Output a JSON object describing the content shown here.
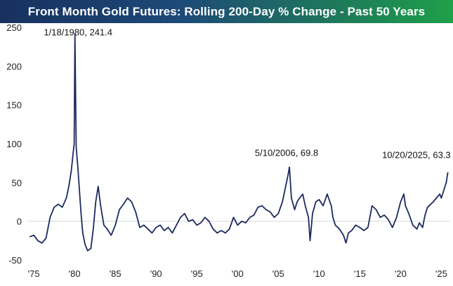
{
  "chart_data": {
    "type": "line",
    "title": "Front Month Gold Futures: Rolling 200-Day % Change - Past 50 Years",
    "xlabel": "",
    "ylabel": "",
    "xlim": [
      1974.3,
      2026.0
    ],
    "ylim": [
      -50,
      250
    ],
    "grid": false,
    "line_color": "#1b2a5e",
    "x_ticks": [
      {
        "value": 1975,
        "label": "'75"
      },
      {
        "value": 1980,
        "label": "'80"
      },
      {
        "value": 1985,
        "label": "'85"
      },
      {
        "value": 1990,
        "label": "'90"
      },
      {
        "value": 1995,
        "label": "'95"
      },
      {
        "value": 2000,
        "label": "'00"
      },
      {
        "value": 2005,
        "label": "'05"
      },
      {
        "value": 2010,
        "label": "'10"
      },
      {
        "value": 2015,
        "label": "'15"
      },
      {
        "value": 2020,
        "label": "'20"
      },
      {
        "value": 2025,
        "label": "'25"
      }
    ],
    "y_ticks": [
      {
        "value": -50,
        "label": "-50"
      },
      {
        "value": 0,
        "label": "0"
      },
      {
        "value": 50,
        "label": "50"
      },
      {
        "value": 100,
        "label": "100"
      },
      {
        "value": 150,
        "label": "150"
      },
      {
        "value": 200,
        "label": "200"
      },
      {
        "value": 250,
        "label": "250"
      }
    ],
    "annotations": [
      {
        "text": "1/18/1980, 241.4",
        "x": 1980.05,
        "y": 241.4
      },
      {
        "text": "5/10/2006, 69.8",
        "x": 2006.36,
        "y": 69.8
      },
      {
        "text": "10/20/2025, 63.3",
        "x": 2025.8,
        "y": 63.3
      }
    ],
    "series": [
      {
        "name": "Rolling 200-Day % Change",
        "x": [
          1974.5,
          1975.0,
          1975.5,
          1976.0,
          1976.5,
          1977.0,
          1977.5,
          1978.0,
          1978.5,
          1979.0,
          1979.3,
          1979.6,
          1979.8,
          1979.95,
          1980.05,
          1980.2,
          1980.4,
          1980.6,
          1980.8,
          1981.0,
          1981.3,
          1981.6,
          1982.0,
          1982.3,
          1982.6,
          1982.9,
          1983.2,
          1983.6,
          1984.0,
          1984.5,
          1985.0,
          1985.5,
          1986.0,
          1986.5,
          1987.0,
          1987.5,
          1988.0,
          1988.5,
          1989.0,
          1989.5,
          1990.0,
          1990.5,
          1991.0,
          1991.5,
          1992.0,
          1992.5,
          1993.0,
          1993.5,
          1994.0,
          1994.5,
          1995.0,
          1995.5,
          1996.0,
          1996.5,
          1997.0,
          1997.5,
          1998.0,
          1998.5,
          1999.0,
          1999.5,
          2000.0,
          2000.5,
          2001.0,
          2001.5,
          2002.0,
          2002.5,
          2003.0,
          2003.5,
          2004.0,
          2004.5,
          2005.0,
          2005.5,
          2005.9,
          2006.2,
          2006.36,
          2006.6,
          2007.0,
          2007.3,
          2007.6,
          2008.0,
          2008.3,
          2008.7,
          2008.9,
          2009.2,
          2009.6,
          2010.0,
          2010.5,
          2011.0,
          2011.5,
          2011.7,
          2012.0,
          2012.5,
          2013.0,
          2013.3,
          2013.6,
          2014.0,
          2014.5,
          2015.0,
          2015.5,
          2016.0,
          2016.5,
          2017.0,
          2017.5,
          2018.0,
          2018.5,
          2019.0,
          2019.5,
          2020.0,
          2020.4,
          2020.6,
          2021.0,
          2021.5,
          2022.0,
          2022.3,
          2022.7,
          2023.0,
          2023.3,
          2023.7,
          2024.0,
          2024.4,
          2024.8,
          2025.0,
          2025.3,
          2025.6,
          2025.8
        ],
        "y": [
          -20,
          -18,
          -25,
          -28,
          -22,
          5,
          18,
          22,
          18,
          30,
          45,
          65,
          85,
          100,
          241.4,
          95,
          70,
          40,
          10,
          -15,
          -30,
          -38,
          -35,
          -10,
          25,
          45,
          20,
          -5,
          -10,
          -18,
          -5,
          15,
          22,
          30,
          25,
          12,
          -8,
          -5,
          -10,
          -15,
          -8,
          -5,
          -12,
          -8,
          -15,
          -5,
          5,
          10,
          0,
          2,
          -5,
          -2,
          5,
          0,
          -10,
          -15,
          -12,
          -15,
          -10,
          5,
          -5,
          0,
          -2,
          5,
          8,
          18,
          20,
          15,
          12,
          5,
          10,
          25,
          45,
          60,
          69.8,
          30,
          15,
          25,
          30,
          35,
          20,
          5,
          -25,
          10,
          25,
          28,
          20,
          35,
          20,
          5,
          -5,
          -10,
          -18,
          -28,
          -15,
          -12,
          -5,
          -8,
          -12,
          -8,
          20,
          15,
          5,
          8,
          2,
          -8,
          5,
          25,
          35,
          20,
          10,
          -5,
          -10,
          -2,
          -8,
          8,
          18,
          22,
          25,
          30,
          35,
          30,
          40,
          50,
          63.3
        ]
      }
    ]
  }
}
